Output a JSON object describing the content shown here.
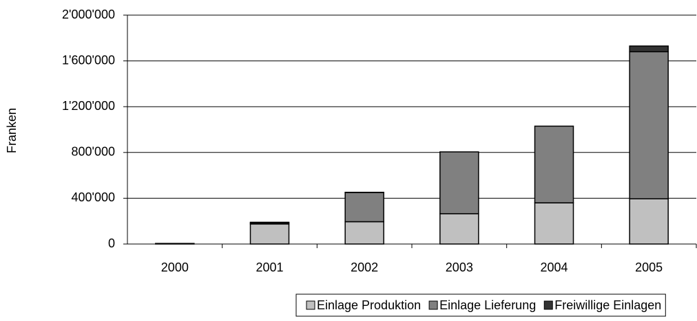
{
  "chart_data": {
    "type": "stacked_bar",
    "y_label": "Franken",
    "categories": [
      "2000",
      "2001",
      "2002",
      "2003",
      "2004",
      "2005"
    ],
    "series": [
      {
        "name": "Einlage Produktion",
        "color": "#c0c0c0",
        "values": [
          5000,
          175000,
          195000,
          265000,
          360000,
          395000
        ]
      },
      {
        "name": "Einlage Lieferung",
        "color": "#808080",
        "values": [
          0,
          10000,
          255000,
          540000,
          670000,
          1285000
        ]
      },
      {
        "name": "Freiwillige Einlagen",
        "color": "#333333",
        "values": [
          0,
          5000,
          2000,
          0,
          0,
          50000
        ]
      }
    ],
    "ylim": [
      0,
      2000000
    ],
    "yticks": [
      0,
      {
        "value": 400000,
        "label": "400'000"
      },
      {
        "value": 800000,
        "label": "800'000"
      },
      {
        "value": 1200000,
        "label": "1'200'000"
      },
      {
        "value": 1600000,
        "label": "1'600'000"
      },
      {
        "value": 2000000,
        "label": "2'000'000"
      }
    ],
    "grid": true,
    "legend": "bottom-right"
  }
}
